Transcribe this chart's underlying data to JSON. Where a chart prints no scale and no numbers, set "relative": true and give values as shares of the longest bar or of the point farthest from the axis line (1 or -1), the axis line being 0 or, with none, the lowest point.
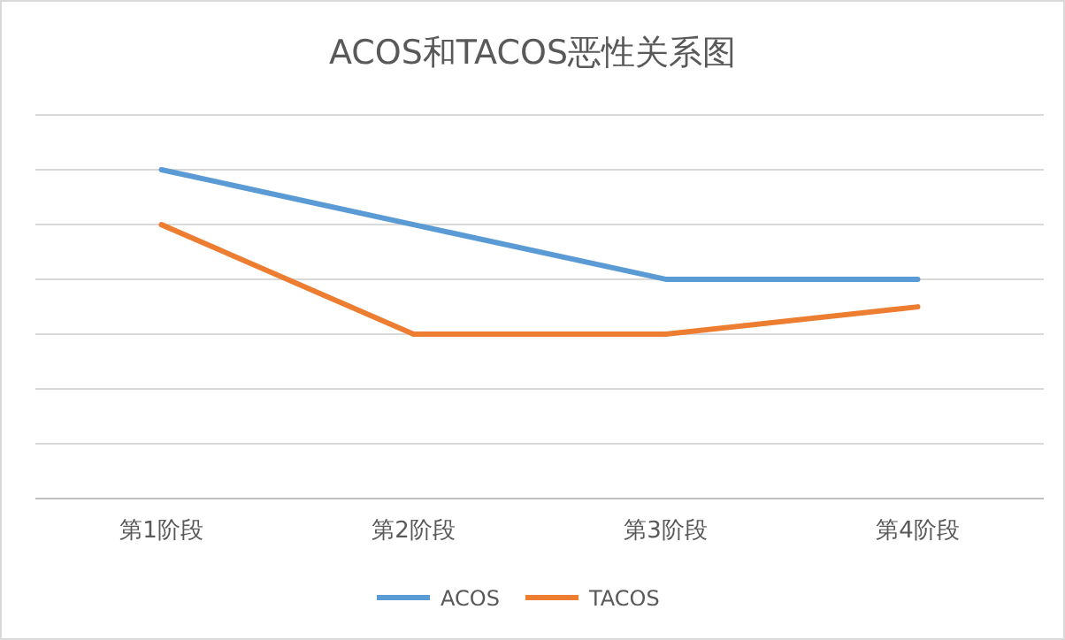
{
  "chart_data": {
    "type": "line",
    "title": "ACOS和TACOS恶性关系图",
    "categories": [
      "第1阶段",
      "第2阶段",
      "第3阶段",
      "第4阶段"
    ],
    "relative": true,
    "grid": "y",
    "legend": "bottom",
    "marker": "none",
    "series": [
      {
        "name": "ACOS",
        "color": "#5b9bd5",
        "values": [
          1,
          0.833,
          0.667,
          0.667
        ]
      },
      {
        "name": "TACOS",
        "color": "#ed7d31",
        "values": [
          0.833,
          0.5,
          0.5,
          0.583
        ]
      }
    ]
  }
}
